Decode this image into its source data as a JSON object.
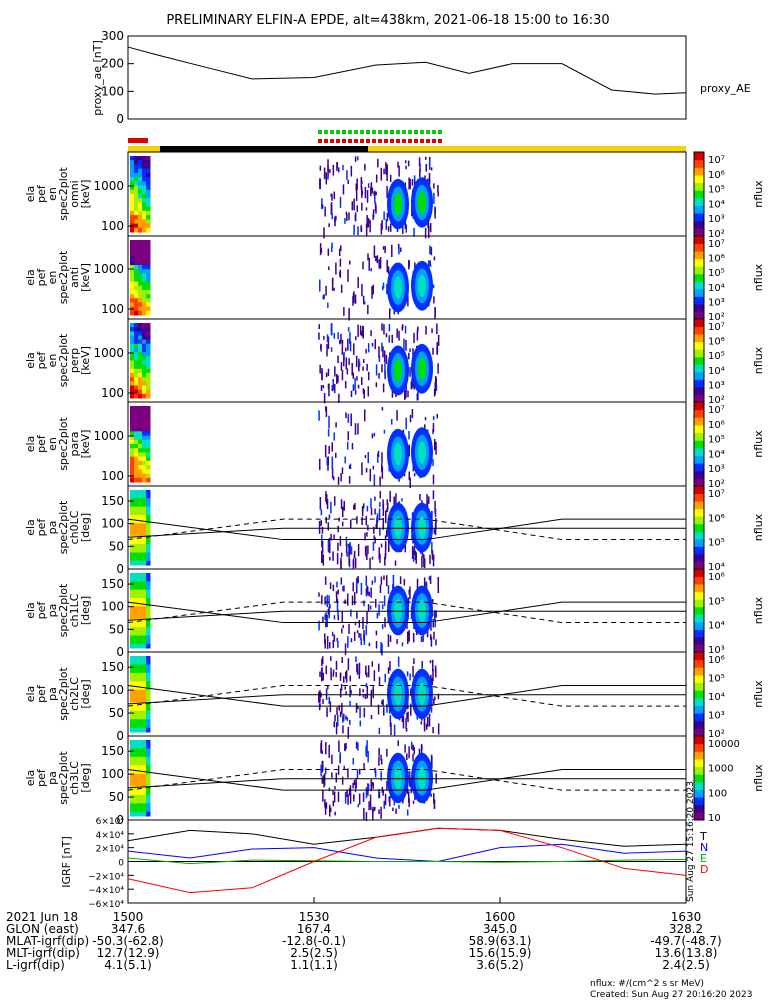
{
  "title": "PRELIMINARY ELFIN-A EPDE, alt=438km, 2021-06-18 15:00 to 16:30",
  "colors": {
    "bar_yellow": "#f5d200",
    "bar_black": "#000000",
    "flag_red": "#e00000",
    "flag_green": "#00d000",
    "trace_T": "#000000",
    "trace_N": "#0000ff",
    "trace_E": "#00b000",
    "trace_D": "#ff0000"
  },
  "colorbar_label": "nflux",
  "chart_data": [
    {
      "type": "line",
      "ylabel": "proxy_ae [nT]",
      "ylim": [
        0,
        300
      ],
      "yticks": [
        "0",
        "100",
        "200",
        "300"
      ],
      "series": [
        {
          "name": "proxy_AE",
          "x": [
            0,
            5,
            12,
            20,
            30,
            40,
            48,
            55,
            62,
            70,
            78,
            85,
            90
          ],
          "values": [
            260,
            230,
            190,
            145,
            150,
            195,
            205,
            165,
            200,
            200,
            105,
            90,
            95
          ]
        }
      ]
    },
    {
      "type": "heatmap",
      "ylabel": [
        "ela",
        "pef",
        "en",
        "spec2plot",
        "omni",
        "[keV]"
      ],
      "yticks": [
        "100",
        "1000"
      ],
      "cbar": [
        "10⁷",
        "10⁶",
        "10⁵",
        "10⁴",
        "10³",
        "10²"
      ],
      "zlabel": "nflux"
    },
    {
      "type": "heatmap",
      "ylabel": [
        "ela",
        "pef",
        "en",
        "spec2plot",
        "anti",
        "[keV]"
      ],
      "yticks": [
        "100",
        "1000"
      ],
      "cbar": [
        "10⁷",
        "10⁶",
        "10⁵",
        "10⁴",
        "10³",
        "10²"
      ],
      "zlabel": "nflux"
    },
    {
      "type": "heatmap",
      "ylabel": [
        "ela",
        "pef",
        "en",
        "spec2plot",
        "perp",
        "[keV]"
      ],
      "yticks": [
        "100",
        "1000"
      ],
      "cbar": [
        "10⁷",
        "10⁶",
        "10⁵",
        "10⁴",
        "10³",
        "10²"
      ],
      "zlabel": "nflux"
    },
    {
      "type": "heatmap",
      "ylabel": [
        "ela",
        "pef",
        "en",
        "spec2plot",
        "para",
        "[keV]"
      ],
      "yticks": [
        "100",
        "1000"
      ],
      "cbar": [
        "10⁷",
        "10⁶",
        "10⁵",
        "10⁴",
        "10³",
        "10²"
      ],
      "zlabel": "nflux"
    },
    {
      "type": "heatmap",
      "ylabel": [
        "ela",
        "pef",
        "pa",
        "spec2plot",
        "ch0LC",
        "[deg]"
      ],
      "yticks": [
        "0",
        "50",
        "100",
        "150"
      ],
      "cbar": [
        "10⁷",
        "10⁶",
        "10⁵",
        "10⁴"
      ],
      "zlabel": "nflux"
    },
    {
      "type": "heatmap",
      "ylabel": [
        "ela",
        "pef",
        "pa",
        "spec2plot",
        "ch1LC",
        "[deg]"
      ],
      "yticks": [
        "0",
        "50",
        "100",
        "150"
      ],
      "cbar": [
        "10⁶",
        "10⁵",
        "10⁴",
        "10³"
      ],
      "zlabel": "nflux"
    },
    {
      "type": "heatmap",
      "ylabel": [
        "ela",
        "pef",
        "pa",
        "spec2plot",
        "ch2LC",
        "[deg]"
      ],
      "yticks": [
        "0",
        "50",
        "100",
        "150"
      ],
      "cbar": [
        "10⁶",
        "10⁵",
        "10⁴",
        "10³",
        "10²"
      ],
      "zlabel": "nflux"
    },
    {
      "type": "heatmap",
      "ylabel": [
        "ela",
        "pef",
        "pa",
        "spec2plot",
        "ch3LC",
        "[deg]"
      ],
      "yticks": [
        "0",
        "50",
        "100",
        "150"
      ],
      "cbar": [
        "10000",
        "1000",
        "100",
        "10"
      ],
      "zlabel": "nflux"
    },
    {
      "type": "line",
      "ylabel": "IGRF [nT]",
      "ylim": [
        -60000,
        60000
      ],
      "yticks": [
        "6×10⁴",
        "4×10⁴",
        "2×10⁴",
        "0",
        "−2×10⁴",
        "−4×10⁴",
        "−6×10⁴"
      ],
      "series": [
        {
          "name": "T",
          "x": [
            0,
            10,
            20,
            30,
            40,
            50,
            60,
            70,
            80,
            90
          ],
          "values": [
            30000,
            45000,
            40000,
            25000,
            35000,
            48000,
            45000,
            32000,
            22000,
            25000
          ]
        },
        {
          "name": "N",
          "x": [
            0,
            10,
            20,
            30,
            40,
            50,
            60,
            70,
            80,
            90
          ],
          "values": [
            15000,
            5000,
            18000,
            20000,
            5000,
            0,
            20000,
            25000,
            12000,
            15000
          ]
        },
        {
          "name": "E",
          "x": [
            0,
            10,
            20,
            30,
            40,
            50,
            60,
            70,
            80,
            90
          ],
          "values": [
            5000,
            -3000,
            2000,
            1000,
            0,
            0,
            -1000,
            0,
            2000,
            3000
          ]
        },
        {
          "name": "D",
          "x": [
            0,
            10,
            20,
            30,
            40,
            50,
            60,
            70,
            80,
            90
          ],
          "values": [
            -25000,
            -45000,
            -38000,
            0,
            35000,
            48000,
            45000,
            20000,
            -10000,
            -20000
          ]
        }
      ]
    }
  ],
  "ae_label": "proxy_AE",
  "igrf_legend": [
    "T",
    "N",
    "E",
    "D"
  ],
  "side_note": "Sun Aug 27 15:16:20 2023",
  "footer": {
    "rows": [
      {
        "label": "2021 Jun 18",
        "values": [
          "1500",
          "1530",
          "1600",
          "1630"
        ]
      },
      {
        "label": "GLON (east)",
        "values": [
          "347.6",
          "167.4",
          "345.0",
          "328.2"
        ]
      },
      {
        "label": "MLAT-igrf(dip)",
        "values": [
          "-50.3(-62.8)",
          "-12.8(-0.1)",
          "58.9(63.1)",
          "-49.7(-48.7)"
        ]
      },
      {
        "label": "MLT-igrf(dip)",
        "values": [
          "12.7(12.9)",
          "2.5(2.5)",
          "15.6(15.9)",
          "13.6(13.8)"
        ]
      },
      {
        "label": "L-igrf(dip)",
        "values": [
          "4.1(5.1)",
          "1.1(1.1)",
          "3.6(5.2)",
          "2.4(2.5)"
        ]
      }
    ],
    "units": "nflux: #/(cm^2 s sr MeV)",
    "created": "Created: Sun Aug 27 20:16:20 2023"
  }
}
